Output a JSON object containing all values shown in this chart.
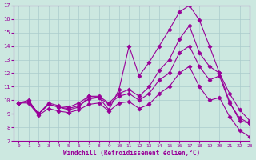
{
  "xlabel": "Windchill (Refroidissement éolien,°C)",
  "background_color": "#cce8e0",
  "line_color": "#990099",
  "grid_color": "#aacccc",
  "xlim": [
    -0.5,
    23
  ],
  "ylim": [
    7,
    17
  ],
  "xticks": [
    0,
    1,
    2,
    3,
    4,
    5,
    6,
    7,
    8,
    9,
    10,
    11,
    12,
    13,
    14,
    15,
    16,
    17,
    18,
    19,
    20,
    21,
    22,
    23
  ],
  "yticks": [
    7,
    8,
    9,
    10,
    11,
    12,
    13,
    14,
    15,
    16,
    17
  ],
  "series": [
    [
      9.8,
      10.0,
      9.0,
      9.7,
      9.5,
      9.3,
      9.5,
      10.3,
      10.2,
      9.3,
      10.8,
      14.0,
      11.8,
      12.8,
      14.0,
      15.2,
      16.5,
      17.0,
      15.9,
      14.0,
      12.0,
      9.9,
      8.5,
      8.3
    ],
    [
      9.8,
      9.9,
      9.0,
      9.8,
      9.6,
      9.5,
      9.8,
      10.3,
      10.3,
      9.8,
      10.5,
      10.8,
      10.3,
      11.0,
      12.2,
      13.0,
      14.5,
      15.5,
      13.5,
      12.5,
      12.0,
      10.5,
      9.3,
      8.5
    ],
    [
      9.8,
      9.9,
      9.0,
      9.7,
      9.5,
      9.4,
      9.6,
      10.1,
      10.2,
      9.7,
      10.3,
      10.5,
      10.0,
      10.5,
      11.5,
      12.0,
      13.5,
      14.0,
      12.5,
      11.5,
      11.8,
      9.8,
      8.7,
      8.3
    ],
    [
      9.8,
      9.8,
      8.9,
      9.4,
      9.2,
      9.1,
      9.3,
      9.7,
      9.8,
      9.2,
      9.8,
      9.9,
      9.4,
      9.7,
      10.5,
      11.0,
      12.0,
      12.5,
      11.0,
      10.0,
      10.2,
      8.8,
      7.8,
      7.3
    ]
  ],
  "markers": [
    "D",
    "D",
    "D",
    "D"
  ],
  "marker_sizes": [
    2.5,
    2.5,
    2.5,
    2.5
  ]
}
